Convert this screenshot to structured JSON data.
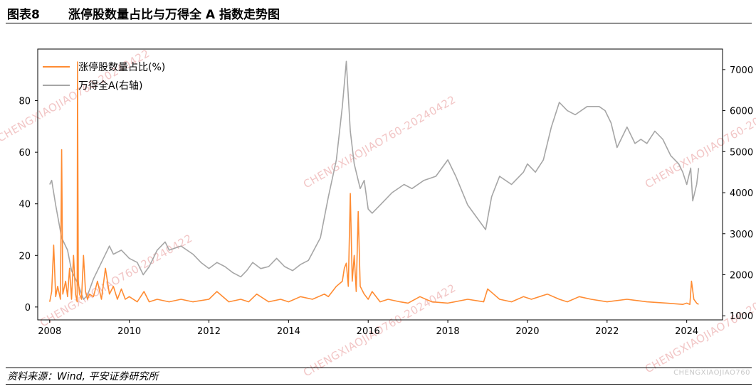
{
  "header": {
    "figure_number": "图表8",
    "title": "涨停股数量占比与万得全 A 指数走势图"
  },
  "footer": {
    "source": "资料来源：Wind, 平安证券研究所",
    "watermark": "CHENGXIAOJIAO760"
  },
  "watermark_text": "CHENGXIAOJIAO760-20240422",
  "colors": {
    "limit_up_ratio": "#ff8c33",
    "wind_all_a": "#a6a6a6"
  },
  "chart_data": {
    "type": "line",
    "x_ticks": [
      "2008",
      "2010",
      "2012",
      "2014",
      "2016",
      "2018",
      "2020",
      "2022",
      "2024"
    ],
    "x_range": [
      2008.0,
      2024.4
    ],
    "y_left_ticks": [
      "0",
      "20",
      "40",
      "60",
      "80"
    ],
    "y_left_range": [
      -5,
      100
    ],
    "y_right_ticks": [
      "1000",
      "2000",
      "3000",
      "4000",
      "5000",
      "6000",
      "7000"
    ],
    "y_right_range": [
      900,
      7500
    ],
    "legend_position": "top-left",
    "series": [
      {
        "name": "涨停股数量占比(%)",
        "axis": "left",
        "color": "#ff8c33",
        "x": [
          2008.0,
          2008.05,
          2008.1,
          2008.15,
          2008.2,
          2008.27,
          2008.3,
          2008.33,
          2008.4,
          2008.45,
          2008.5,
          2008.55,
          2008.6,
          2008.65,
          2008.69,
          2008.7,
          2008.72,
          2008.75,
          2008.8,
          2008.85,
          2008.9,
          2008.95,
          2009.0,
          2009.1,
          2009.2,
          2009.3,
          2009.4,
          2009.5,
          2009.6,
          2009.7,
          2009.8,
          2009.9,
          2010.0,
          2010.2,
          2010.37,
          2010.5,
          2010.7,
          2011.0,
          2011.3,
          2011.6,
          2012.0,
          2012.2,
          2012.5,
          2012.8,
          2013.0,
          2013.2,
          2013.5,
          2013.8,
          2014.0,
          2014.3,
          2014.6,
          2014.9,
          2015.0,
          2015.2,
          2015.35,
          2015.4,
          2015.45,
          2015.5,
          2015.55,
          2015.6,
          2015.65,
          2015.7,
          2015.75,
          2015.8,
          2015.9,
          2016.0,
          2016.1,
          2016.3,
          2016.5,
          2016.8,
          2017.0,
          2017.3,
          2017.6,
          2018.0,
          2018.5,
          2018.9,
          2019.0,
          2019.15,
          2019.3,
          2019.6,
          2019.9,
          2020.1,
          2020.5,
          2020.8,
          2021.0,
          2021.3,
          2021.6,
          2022.0,
          2022.5,
          2023.0,
          2023.5,
          2023.9,
          2024.0,
          2024.08,
          2024.12,
          2024.18,
          2024.25,
          2024.3
        ],
        "values": [
          2,
          6,
          24,
          4,
          8,
          3,
          61,
          5,
          10,
          4,
          15,
          3,
          20,
          5,
          2,
          95,
          10,
          5,
          3,
          20,
          6,
          3,
          5,
          4,
          10,
          3,
          15,
          5,
          8,
          3,
          7,
          3,
          4,
          2,
          6,
          2,
          3,
          2,
          3,
          2,
          3,
          6,
          2,
          3,
          2,
          5,
          2,
          3,
          2,
          4,
          3,
          5,
          4,
          8,
          10,
          15,
          17,
          8,
          44,
          10,
          20,
          6,
          37,
          8,
          5,
          3,
          6,
          2,
          3,
          2,
          1.5,
          4,
          2,
          1.5,
          3,
          2,
          7,
          5,
          3,
          2,
          4,
          3,
          5,
          3,
          2,
          4,
          3,
          2,
          3,
          2,
          1.5,
          1,
          1.5,
          1,
          10,
          3,
          1.5,
          1
        ]
      },
      {
        "name": "万得全A(右轴)",
        "axis": "right",
        "color": "#a6a6a6",
        "x": [
          2008.0,
          2008.05,
          2008.15,
          2008.3,
          2008.45,
          2008.55,
          2008.7,
          2008.85,
          2008.95,
          2009.1,
          2009.3,
          2009.5,
          2009.6,
          2009.8,
          2009.9,
          2010.0,
          2010.2,
          2010.35,
          2010.5,
          2010.7,
          2010.9,
          2011.0,
          2011.3,
          2011.6,
          2011.8,
          2012.0,
          2012.2,
          2012.4,
          2012.6,
          2012.8,
          2012.95,
          2013.1,
          2013.3,
          2013.5,
          2013.7,
          2013.9,
          2014.1,
          2014.3,
          2014.5,
          2014.8,
          2015.0,
          2015.2,
          2015.35,
          2015.45,
          2015.55,
          2015.65,
          2015.8,
          2015.9,
          2016.0,
          2016.1,
          2016.3,
          2016.6,
          2016.9,
          2017.1,
          2017.4,
          2017.7,
          2018.0,
          2018.2,
          2018.5,
          2018.8,
          2018.95,
          2019.1,
          2019.3,
          2019.6,
          2019.9,
          2020.0,
          2020.2,
          2020.4,
          2020.6,
          2020.8,
          2021.0,
          2021.2,
          2021.5,
          2021.8,
          2021.95,
          2022.1,
          2022.25,
          2022.35,
          2022.5,
          2022.7,
          2022.85,
          2023.0,
          2023.2,
          2023.4,
          2023.6,
          2023.8,
          2023.9,
          2024.0,
          2024.1,
          2024.15,
          2024.25,
          2024.3
        ],
        "values": [
          4200,
          4300,
          3700,
          2900,
          2600,
          2100,
          1800,
          1400,
          1500,
          1900,
          2300,
          2700,
          2500,
          2600,
          2500,
          2400,
          2300,
          2000,
          2200,
          2600,
          2800,
          2600,
          2700,
          2500,
          2300,
          2150,
          2300,
          2200,
          2050,
          1950,
          2100,
          2300,
          2150,
          2200,
          2400,
          2200,
          2100,
          2250,
          2350,
          2900,
          3900,
          4800,
          6100,
          7200,
          5500,
          4700,
          4100,
          4300,
          3600,
          3500,
          3700,
          4000,
          4200,
          4100,
          4300,
          4400,
          4800,
          4400,
          3700,
          3300,
          3100,
          3900,
          4400,
          4200,
          4500,
          4700,
          4500,
          4800,
          5600,
          6200,
          6000,
          5900,
          6100,
          6100,
          6000,
          5700,
          5100,
          5300,
          5600,
          5200,
          5300,
          5200,
          5500,
          5300,
          4900,
          4700,
          4500,
          4200,
          4600,
          3800,
          4200,
          4600
        ]
      }
    ]
  }
}
